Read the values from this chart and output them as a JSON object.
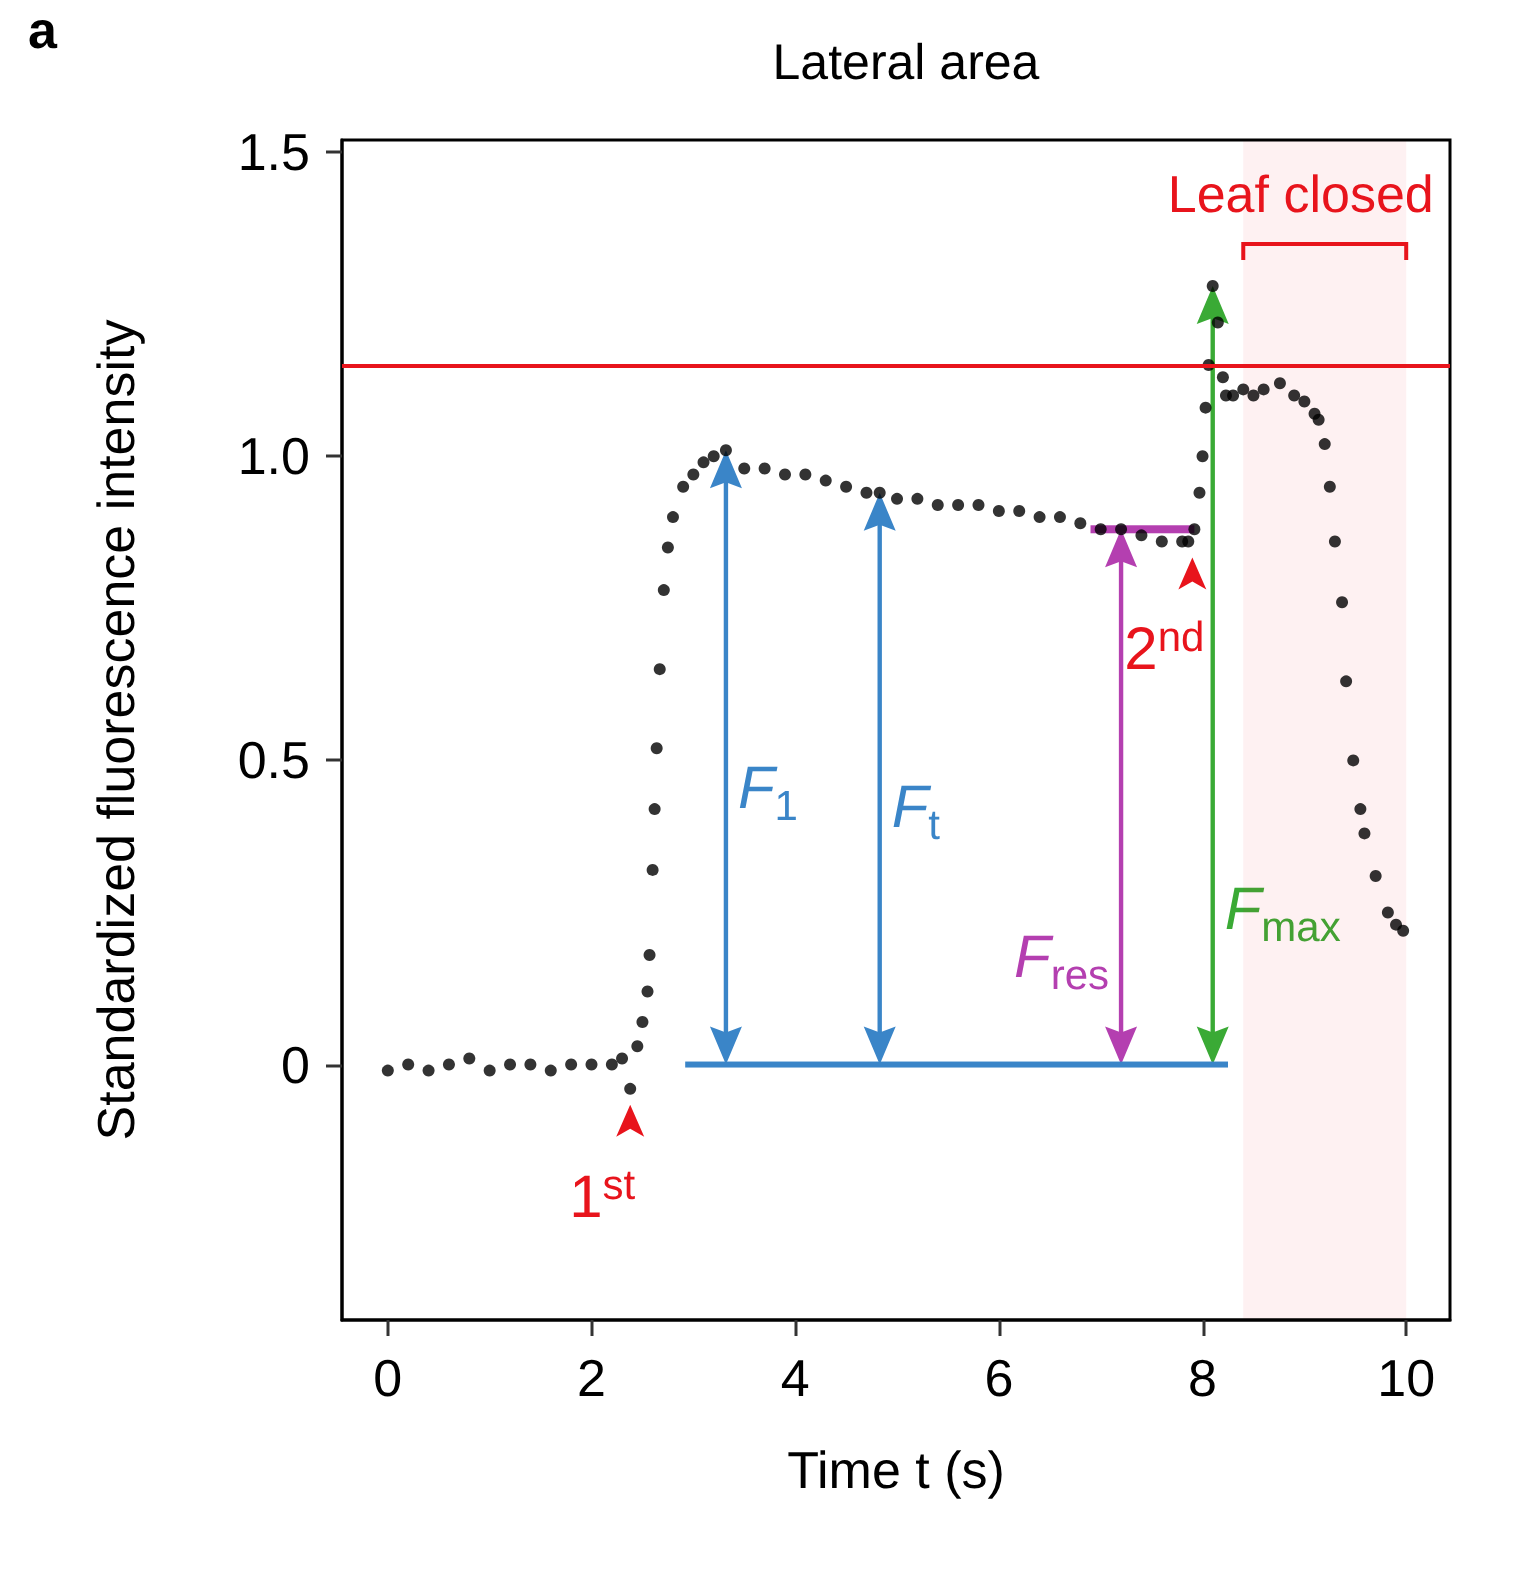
{
  "chart_data": {
    "type": "scatter",
    "title": "Lateral area",
    "xlabel": "Time t (s)",
    "ylabel": "Standardized fluorescence intensity",
    "x": [
      0,
      0.2,
      0.4,
      0.6,
      0.8,
      1.0,
      1.2,
      1.4,
      1.6,
      1.8,
      2.0,
      2.2,
      2.3,
      2.38,
      2.45,
      2.5,
      2.55,
      2.57,
      2.6,
      2.62,
      2.64,
      2.67,
      2.71,
      2.75,
      2.8,
      2.9,
      3.0,
      3.1,
      3.2,
      3.32,
      3.5,
      3.7,
      3.9,
      4.1,
      4.3,
      4.5,
      4.7,
      4.83,
      5.0,
      5.2,
      5.4,
      5.6,
      5.8,
      6.0,
      6.2,
      6.4,
      6.6,
      6.8,
      7.0,
      7.2,
      7.4,
      7.6,
      7.8,
      7.86,
      7.92,
      7.97,
      8.0,
      8.03,
      8.06,
      8.1,
      8.15,
      8.2,
      8.23,
      8.3,
      8.4,
      8.5,
      8.6,
      8.76,
      8.9,
      9.0,
      9.1,
      9.14,
      9.2,
      9.25,
      9.3,
      9.37,
      9.41,
      9.48,
      9.55,
      9.59,
      9.7,
      9.82,
      9.9,
      9.97
    ],
    "values": [
      -0.01,
      0,
      -0.01,
      0,
      0.01,
      -0.01,
      0,
      0,
      -0.01,
      0,
      0,
      0,
      0.01,
      -0.04,
      0.03,
      0.07,
      0.12,
      0.18,
      0.32,
      0.42,
      0.52,
      0.65,
      0.78,
      0.85,
      0.9,
      0.95,
      0.97,
      0.99,
      1.0,
      1.01,
      0.98,
      0.98,
      0.97,
      0.97,
      0.96,
      0.95,
      0.94,
      0.94,
      0.93,
      0.93,
      0.92,
      0.92,
      0.92,
      0.91,
      0.91,
      0.9,
      0.9,
      0.89,
      0.88,
      0.88,
      0.87,
      0.86,
      0.86,
      0.86,
      0.88,
      0.94,
      1.0,
      1.08,
      1.15,
      1.28,
      1.22,
      1.13,
      1.1,
      1.1,
      1.11,
      1.1,
      1.11,
      1.12,
      1.1,
      1.09,
      1.07,
      1.06,
      1.02,
      0.95,
      0.86,
      0.76,
      0.63,
      0.5,
      0.42,
      0.38,
      0.31,
      0.25,
      0.23,
      0.22
    ],
    "color": "#000000",
    "marker": "circle",
    "xlim": [
      -0.45,
      10.43
    ],
    "xticks": [
      0,
      2,
      4,
      6,
      8,
      10
    ],
    "ylim": [
      -0.42,
      1.52
    ],
    "yticks": [
      0,
      0.5,
      {
        "value": 1,
        "label": "1.0"
      },
      1.5
    ],
    "ref_lines": [
      {
        "axis": "y",
        "value": 1.15,
        "color": "#e8141c"
      }
    ],
    "bands": [
      {
        "axis": "x",
        "from": 8.4,
        "to": 10.0,
        "label": "Leaf closed",
        "color": "#e8141c"
      }
    ],
    "annotations": [
      "a",
      "F$_{1}$",
      "F$_{t}$",
      "F$_{res}$",
      "F$_{max}$",
      {
        "text": "1$^{st}$",
        "x": 2.38,
        "y": -0.04
      },
      {
        "text": "2$^{nd}$",
        "x": 7.9,
        "y": 0.86
      }
    ]
  }
}
